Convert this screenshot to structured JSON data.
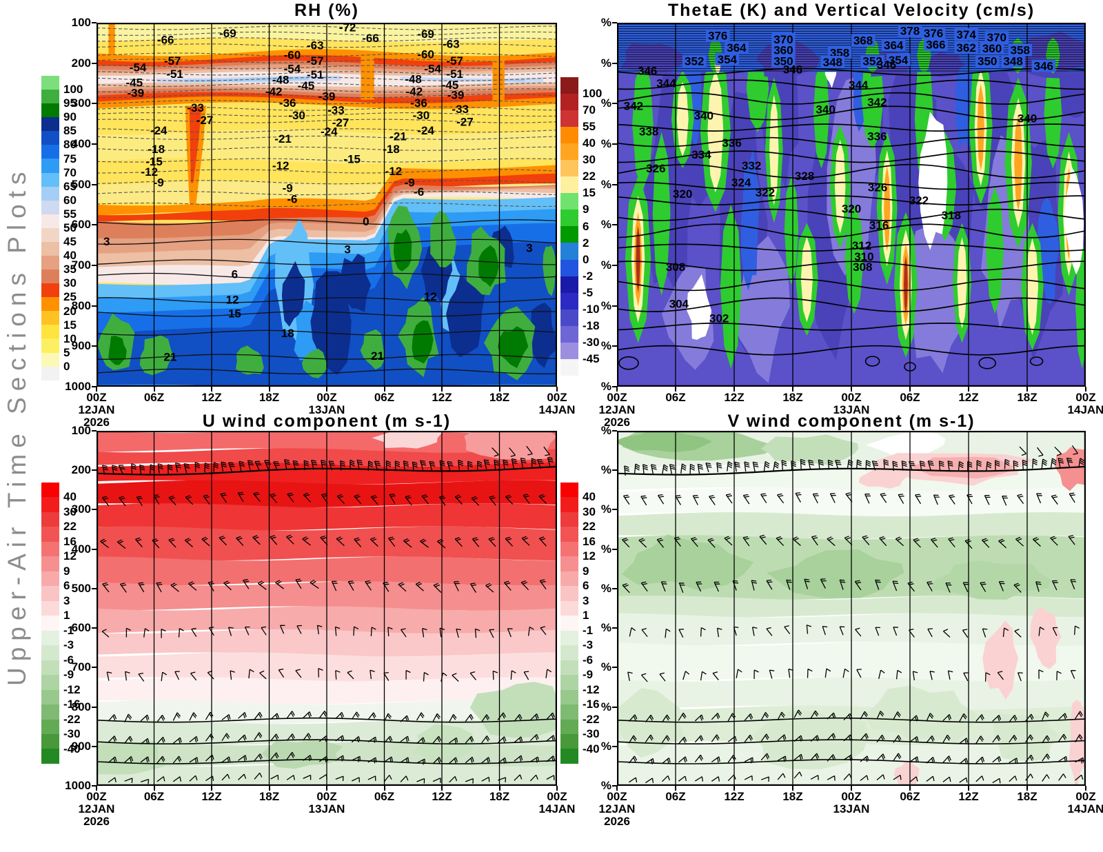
{
  "page": {
    "left_title": "Upper-Air Time Sections Plots",
    "background": "#FFFFFF"
  },
  "colors": {
    "frame": "#000000",
    "grid": "#000000",
    "dashed_contour": "#555555",
    "left_title_color": "#8C8C8C"
  },
  "time_axis": {
    "tick_labels": [
      "00Z",
      "06Z",
      "12Z",
      "18Z",
      "00Z",
      "06Z",
      "12Z",
      "18Z",
      "00Z"
    ],
    "date_labels": [
      {
        "tick": 0,
        "line1": "12JAN",
        "line2": "2026"
      },
      {
        "tick": 4,
        "line1": "13JAN",
        "line2": ""
      },
      {
        "tick": 8,
        "line1": "14JAN",
        "line2": ""
      }
    ]
  },
  "chart_data": [
    {
      "type": "heatmap",
      "key": "rh",
      "title": "RH (%)",
      "y_tick_labels": [
        "100",
        "200",
        "300",
        "400",
        "500",
        "600",
        "700",
        "800",
        "900",
        "1000"
      ],
      "x_tick_labels": [
        "00Z",
        "06Z",
        "12Z",
        "18Z",
        "00Z",
        "06Z",
        "12Z",
        "18Z",
        "00Z"
      ],
      "colorbar": {
        "position": "left",
        "labels": [
          "100",
          "95",
          "90",
          "85",
          "80",
          "75",
          "70",
          "65",
          "60",
          "55",
          "50",
          "45",
          "40",
          "35",
          "30",
          "25",
          "20",
          "15",
          "10",
          "5",
          "0"
        ],
        "colors": [
          "#7CDF7C",
          "#3FAE3F",
          "#007A00",
          "#0B2E8F",
          "#114FC4",
          "#176FE8",
          "#2E9BF5",
          "#63BFF8",
          "#A4CEF5",
          "#CFD9F0",
          "#F7E9E7",
          "#F2D6C5",
          "#EDBFA4",
          "#E5A181",
          "#DE7F5B",
          "#F2400D",
          "#FF9100",
          "#FFC222",
          "#FFE33E",
          "#FCF062",
          "#FBF9B5",
          "#F2F2F2"
        ]
      },
      "contour_labels_dashed": [
        {
          "v": "-72",
          "x": 0.545,
          "y": 0.012
        },
        {
          "v": "-69",
          "x": 0.285,
          "y": 0.028
        },
        {
          "v": "-69",
          "x": 0.715,
          "y": 0.03
        },
        {
          "v": "-66",
          "x": 0.15,
          "y": 0.046
        },
        {
          "v": "-66",
          "x": 0.595,
          "y": 0.042
        },
        {
          "v": "-63",
          "x": 0.475,
          "y": 0.062
        },
        {
          "v": "-63",
          "x": 0.77,
          "y": 0.058
        },
        {
          "v": "-60",
          "x": 0.425,
          "y": 0.088
        },
        {
          "v": "-60",
          "x": 0.715,
          "y": 0.086
        },
        {
          "v": "-57",
          "x": 0.165,
          "y": 0.104
        },
        {
          "v": "-57",
          "x": 0.475,
          "y": 0.104
        },
        {
          "v": "-57",
          "x": 0.778,
          "y": 0.104
        },
        {
          "v": "-54",
          "x": 0.09,
          "y": 0.122
        },
        {
          "v": "-54",
          "x": 0.425,
          "y": 0.126
        },
        {
          "v": "-54",
          "x": 0.73,
          "y": 0.126
        },
        {
          "v": "-51",
          "x": 0.17,
          "y": 0.14
        },
        {
          "v": "-51",
          "x": 0.475,
          "y": 0.142
        },
        {
          "v": "-51",
          "x": 0.778,
          "y": 0.14
        },
        {
          "v": "-48",
          "x": 0.4,
          "y": 0.156
        },
        {
          "v": "-48",
          "x": 0.688,
          "y": 0.154
        },
        {
          "v": "-45",
          "x": 0.082,
          "y": 0.164
        },
        {
          "v": "-45",
          "x": 0.455,
          "y": 0.172
        },
        {
          "v": "-45",
          "x": 0.768,
          "y": 0.17
        },
        {
          "v": "-42",
          "x": 0.385,
          "y": 0.188
        },
        {
          "v": "-42",
          "x": 0.69,
          "y": 0.188
        },
        {
          "v": "-39",
          "x": 0.085,
          "y": 0.192
        },
        {
          "v": "-39",
          "x": 0.5,
          "y": 0.202
        },
        {
          "v": "-39",
          "x": 0.78,
          "y": 0.198
        },
        {
          "v": "-36",
          "x": 0.415,
          "y": 0.22
        },
        {
          "v": "-36",
          "x": 0.7,
          "y": 0.22
        },
        {
          "v": "-33",
          "x": 0.215,
          "y": 0.233
        },
        {
          "v": "-33",
          "x": 0.52,
          "y": 0.24
        },
        {
          "v": "-33",
          "x": 0.79,
          "y": 0.237
        },
        {
          "v": "-30",
          "x": 0.435,
          "y": 0.254
        },
        {
          "v": "-30",
          "x": 0.705,
          "y": 0.254
        },
        {
          "v": "-27",
          "x": 0.235,
          "y": 0.267
        },
        {
          "v": "-27",
          "x": 0.53,
          "y": 0.274
        },
        {
          "v": "-27",
          "x": 0.8,
          "y": 0.272
        },
        {
          "v": "-24",
          "x": 0.135,
          "y": 0.295
        },
        {
          "v": "-24",
          "x": 0.505,
          "y": 0.298
        },
        {
          "v": "-24",
          "x": 0.715,
          "y": 0.295
        },
        {
          "v": "-21",
          "x": 0.405,
          "y": 0.318
        },
        {
          "v": "-21",
          "x": 0.655,
          "y": 0.312
        },
        {
          "v": "-18",
          "x": 0.13,
          "y": 0.347
        },
        {
          "v": "-18",
          "x": 0.64,
          "y": 0.347
        },
        {
          "v": "-15",
          "x": 0.125,
          "y": 0.381
        },
        {
          "v": "-15",
          "x": 0.555,
          "y": 0.374
        },
        {
          "v": "-12",
          "x": 0.115,
          "y": 0.409
        },
        {
          "v": "-12",
          "x": 0.4,
          "y": 0.392
        },
        {
          "v": "-12",
          "x": 0.645,
          "y": 0.407
        },
        {
          "v": "-9",
          "x": 0.135,
          "y": 0.438
        },
        {
          "v": "-9",
          "x": 0.415,
          "y": 0.454
        },
        {
          "v": "-9",
          "x": 0.68,
          "y": 0.438
        },
        {
          "v": "-6",
          "x": 0.425,
          "y": 0.484
        },
        {
          "v": "-6",
          "x": 0.7,
          "y": 0.464
        }
      ],
      "contour_labels_solid": [
        {
          "v": "0",
          "x": 0.585,
          "y": 0.545
        },
        {
          "v": "3",
          "x": 0.022,
          "y": 0.6
        },
        {
          "v": "3",
          "x": 0.545,
          "y": 0.622
        },
        {
          "v": "3",
          "x": 0.94,
          "y": 0.618
        },
        {
          "v": "6",
          "x": 0.3,
          "y": 0.69
        },
        {
          "v": "12",
          "x": 0.295,
          "y": 0.76
        },
        {
          "v": "12",
          "x": 0.725,
          "y": 0.752
        },
        {
          "v": "15",
          "x": 0.3,
          "y": 0.798
        },
        {
          "v": "18",
          "x": 0.415,
          "y": 0.852
        },
        {
          "v": "21",
          "x": 0.16,
          "y": 0.918
        },
        {
          "v": "21",
          "x": 0.61,
          "y": 0.915
        }
      ]
    },
    {
      "type": "heatmap",
      "key": "thetae",
      "title": "ThetaE (K) and Vertical Velocity (cm/s)",
      "y_tick_labels": [
        "%",
        "%",
        "%",
        "%",
        "%",
        "%",
        "%",
        "%",
        "%",
        "%"
      ],
      "x_tick_labels": [
        "00Z",
        "06Z",
        "12Z",
        "18Z",
        "00Z",
        "06Z",
        "12Z",
        "18Z",
        "00Z"
      ],
      "colorbar": {
        "position": "left",
        "labels": [
          "100",
          "70",
          "55",
          "40",
          "30",
          "22",
          "15",
          "9",
          "6",
          "2",
          "0",
          "-2",
          "-5",
          "-10",
          "-18",
          "-30",
          "-45"
        ],
        "colors": [
          "#8B1A1A",
          "#B22222",
          "#CD3333",
          "#FF8C00",
          "#FFA520",
          "#FFC55A",
          "#FFF0A0",
          "#6FE26F",
          "#2ECC2E",
          "#009900",
          "#2580D8",
          "#2155E0",
          "#1A1AA8",
          "#2B2BC4",
          "#4A4AC8",
          "#6E66D4",
          "#9C8FE0",
          "#F5F5F5"
        ]
      },
      "contour_labels_upper": [
        {
          "v": "352",
          "x": 0.165,
          "y": 0.105
        },
        {
          "v": "354",
          "x": 0.235,
          "y": 0.1
        },
        {
          "v": "376",
          "x": 0.215,
          "y": 0.035
        },
        {
          "v": "364",
          "x": 0.255,
          "y": 0.068
        },
        {
          "v": "370",
          "x": 0.355,
          "y": 0.045
        },
        {
          "v": "360",
          "x": 0.355,
          "y": 0.075
        },
        {
          "v": "350",
          "x": 0.355,
          "y": 0.105
        },
        {
          "v": "358",
          "x": 0.475,
          "y": 0.082
        },
        {
          "v": "348",
          "x": 0.46,
          "y": 0.108
        },
        {
          "v": "368",
          "x": 0.525,
          "y": 0.048
        },
        {
          "v": "352",
          "x": 0.545,
          "y": 0.105
        },
        {
          "v": "354",
          "x": 0.6,
          "y": 0.102
        },
        {
          "v": "364",
          "x": 0.59,
          "y": 0.062
        },
        {
          "v": "378",
          "x": 0.625,
          "y": 0.022
        },
        {
          "v": "376",
          "x": 0.675,
          "y": 0.028
        },
        {
          "v": "366",
          "x": 0.68,
          "y": 0.06
        },
        {
          "v": "374",
          "x": 0.745,
          "y": 0.032
        },
        {
          "v": "362",
          "x": 0.745,
          "y": 0.068
        },
        {
          "v": "360",
          "x": 0.8,
          "y": 0.07
        },
        {
          "v": "370",
          "x": 0.81,
          "y": 0.04
        },
        {
          "v": "358",
          "x": 0.86,
          "y": 0.075
        },
        {
          "v": "350",
          "x": 0.79,
          "y": 0.105
        },
        {
          "v": "348",
          "x": 0.845,
          "y": 0.105
        },
        {
          "v": "346",
          "x": 0.91,
          "y": 0.118
        }
      ],
      "contour_labels_main": [
        {
          "v": "346",
          "x": 0.065,
          "y": 0.132
        },
        {
          "v": "346",
          "x": 0.375,
          "y": 0.128
        },
        {
          "v": "346",
          "x": 0.575,
          "y": 0.115
        },
        {
          "v": "344",
          "x": 0.105,
          "y": 0.166
        },
        {
          "v": "344",
          "x": 0.515,
          "y": 0.17
        },
        {
          "v": "342",
          "x": 0.035,
          "y": 0.228
        },
        {
          "v": "342",
          "x": 0.555,
          "y": 0.218
        },
        {
          "v": "340",
          "x": 0.185,
          "y": 0.255
        },
        {
          "v": "340",
          "x": 0.445,
          "y": 0.238
        },
        {
          "v": "340",
          "x": 0.875,
          "y": 0.262
        },
        {
          "v": "338",
          "x": 0.068,
          "y": 0.298
        },
        {
          "v": "336",
          "x": 0.245,
          "y": 0.33
        },
        {
          "v": "336",
          "x": 0.555,
          "y": 0.312
        },
        {
          "v": "334",
          "x": 0.18,
          "y": 0.362
        },
        {
          "v": "332",
          "x": 0.287,
          "y": 0.392
        },
        {
          "v": "328",
          "x": 0.4,
          "y": 0.42
        },
        {
          "v": "326",
          "x": 0.083,
          "y": 0.4
        },
        {
          "v": "326",
          "x": 0.556,
          "y": 0.452
        },
        {
          "v": "324",
          "x": 0.265,
          "y": 0.438
        },
        {
          "v": "322",
          "x": 0.316,
          "y": 0.466
        },
        {
          "v": "322",
          "x": 0.644,
          "y": 0.488
        },
        {
          "v": "320",
          "x": 0.14,
          "y": 0.47
        },
        {
          "v": "320",
          "x": 0.5,
          "y": 0.51
        },
        {
          "v": "318",
          "x": 0.713,
          "y": 0.528
        },
        {
          "v": "316",
          "x": 0.559,
          "y": 0.556
        },
        {
          "v": "312",
          "x": 0.522,
          "y": 0.612
        },
        {
          "v": "310",
          "x": 0.527,
          "y": 0.642
        },
        {
          "v": "308",
          "x": 0.125,
          "y": 0.67
        },
        {
          "v": "308",
          "x": 0.524,
          "y": 0.67
        },
        {
          "v": "304",
          "x": 0.132,
          "y": 0.772
        },
        {
          "v": "302",
          "x": 0.218,
          "y": 0.812
        }
      ]
    },
    {
      "type": "heatmap",
      "key": "u_wind",
      "title": "U wind component (m s-1)",
      "y_tick_labels": [
        "100",
        "200",
        "300",
        "400",
        "500",
        "600",
        "700",
        "800",
        "900",
        "1000"
      ],
      "x_tick_labels": [
        "00Z",
        "06Z",
        "12Z",
        "18Z",
        "00Z",
        "06Z",
        "12Z",
        "18Z",
        "00Z"
      ],
      "has_wind_barbs": true,
      "colorbar": {
        "position": "left",
        "labels": [
          "40",
          "30",
          "22",
          "16",
          "12",
          "9",
          "6",
          "3",
          "1",
          "-1",
          "-3",
          "-6",
          "-9",
          "-12",
          "-16",
          "-22",
          "-30",
          "-40"
        ],
        "colors": [
          "#FA0000",
          "#F31C1C",
          "#EE3B3B",
          "#F25454",
          "#F47272",
          "#F69090",
          "#F8AAAA",
          "#FAC4C4",
          "#FCDADA",
          "#FEF5F5",
          "#E4F0E0",
          "#D4E8CE",
          "#C2DFBA",
          "#AED4A4",
          "#98C88C",
          "#7FBA72",
          "#63AA54",
          "#47993A",
          "#238A23"
        ]
      }
    },
    {
      "type": "heatmap",
      "key": "v_wind",
      "title": "V wind component (m s-1)",
      "y_tick_labels": [
        "%",
        "%",
        "%",
        "%",
        "%",
        "%",
        "%",
        "%",
        "%",
        "%"
      ],
      "x_tick_labels": [
        "00Z",
        "06Z",
        "12Z",
        "18Z",
        "00Z",
        "06Z",
        "12Z",
        "18Z",
        "00Z"
      ],
      "has_wind_barbs": true,
      "colorbar": {
        "position": "left",
        "labels": [
          "40",
          "30",
          "22",
          "16",
          "12",
          "9",
          "6",
          "3",
          "1",
          "-1",
          "-3",
          "-6",
          "-9",
          "-12",
          "-16",
          "-22",
          "-30",
          "-40"
        ],
        "colors": [
          "#FA0000",
          "#F31C1C",
          "#EE3B3B",
          "#F25454",
          "#F47272",
          "#F69090",
          "#F8AAAA",
          "#FAC4C4",
          "#FCDADA",
          "#FEF5F5",
          "#E4F0E0",
          "#D4E8CE",
          "#C2DFBA",
          "#AED4A4",
          "#98C88C",
          "#7FBA72",
          "#63AA54",
          "#47993A",
          "#238A23"
        ]
      }
    }
  ]
}
